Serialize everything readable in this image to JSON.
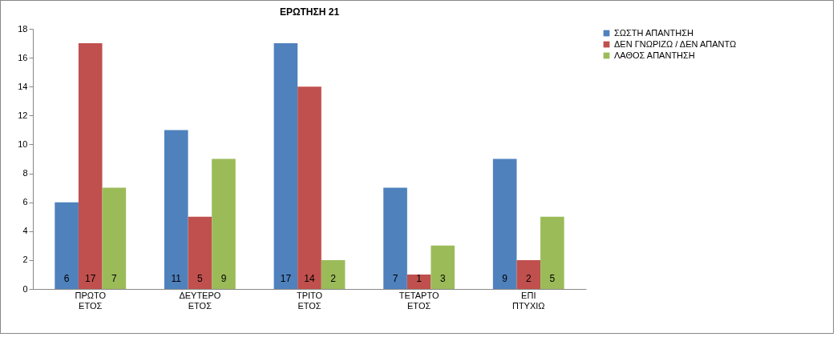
{
  "chart_data": {
    "type": "bar",
    "title": "ΕΡΩΤΗΣΗ 21",
    "categories": [
      "ΠΡΩΤΟ ΕΤΟΣ",
      "ΔΕΥΤΕΡΟ ΕΤΟΣ",
      "ΤΡΙΤΟ ΕΤΟΣ",
      "ΤΕΤΑΡΤΟ ΕΤΟΣ",
      "ΕΠΙ ΠΤΥΧΙΩ"
    ],
    "series": [
      {
        "name": "ΣΩΣΤΗ ΑΠΑΝΤΗΣΗ",
        "color": "#4f81bd",
        "values": [
          6,
          11,
          17,
          7,
          9
        ]
      },
      {
        "name": "ΔΕΝ ΓΝΩΡΙΖΩ / ΔΕΝ ΑΠΑΝΤΩ",
        "color": "#c0504d",
        "values": [
          17,
          5,
          14,
          1,
          2
        ]
      },
      {
        "name": "ΛΑΘΟΣ ΑΠΑΝΤΗΣΗ",
        "color": "#9bbb59",
        "values": [
          7,
          9,
          2,
          3,
          5
        ]
      }
    ],
    "ylim": [
      0,
      18
    ],
    "yticks": [
      0,
      2,
      4,
      6,
      8,
      10,
      12,
      14,
      16,
      18
    ],
    "grid": false,
    "legend": "right",
    "data_labels": true
  }
}
